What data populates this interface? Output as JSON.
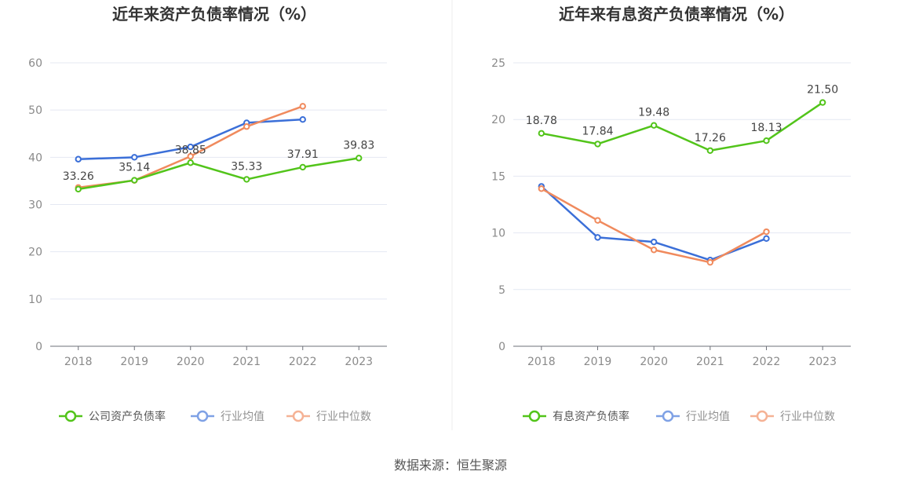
{
  "source": "数据来源：恒生聚源",
  "chart_data": [
    {
      "type": "line",
      "title": "近年来资产负债率情况（%）",
      "categories": [
        "2018",
        "2019",
        "2020",
        "2021",
        "2022",
        "2023"
      ],
      "ylim": [
        0,
        60
      ],
      "yticks": [
        0,
        10,
        20,
        30,
        40,
        50,
        60
      ],
      "grid": true,
      "legend_position": "bottom",
      "series": [
        {
          "name": "公司资产负债率",
          "color": "#52c41a",
          "values": [
            33.26,
            35.14,
            38.85,
            35.33,
            37.91,
            39.83
          ],
          "show_labels": true
        },
        {
          "name": "行业均值",
          "color": "#3b6fd8",
          "values": [
            39.6,
            40.0,
            42.2,
            47.3,
            48.0,
            null
          ],
          "show_labels": false
        },
        {
          "name": "行业中位数",
          "color": "#f08a5d",
          "values": [
            33.6,
            35.1,
            40.2,
            46.5,
            50.8,
            null
          ],
          "show_labels": false
        }
      ]
    },
    {
      "type": "line",
      "title": "近年来有息资产负债率情况（%）",
      "categories": [
        "2018",
        "2019",
        "2020",
        "2021",
        "2022",
        "2023"
      ],
      "ylim": [
        0,
        25
      ],
      "yticks": [
        0,
        5,
        10,
        15,
        20,
        25
      ],
      "grid": true,
      "legend_position": "bottom",
      "series": [
        {
          "name": "有息资产负债率",
          "color": "#52c41a",
          "values": [
            18.78,
            17.84,
            19.48,
            17.26,
            18.13,
            21.5
          ],
          "show_labels": true,
          "label_texts": [
            "18.78",
            "17.84",
            "19.48",
            "17.26",
            "18.13",
            "21.50"
          ]
        },
        {
          "name": "行业均值",
          "color": "#3b6fd8",
          "values": [
            14.1,
            9.6,
            9.2,
            7.6,
            9.5,
            null
          ],
          "show_labels": false
        },
        {
          "name": "行业中位数",
          "color": "#f08a5d",
          "values": [
            13.9,
            11.1,
            8.5,
            7.4,
            10.1,
            null
          ],
          "show_labels": false
        }
      ]
    }
  ]
}
